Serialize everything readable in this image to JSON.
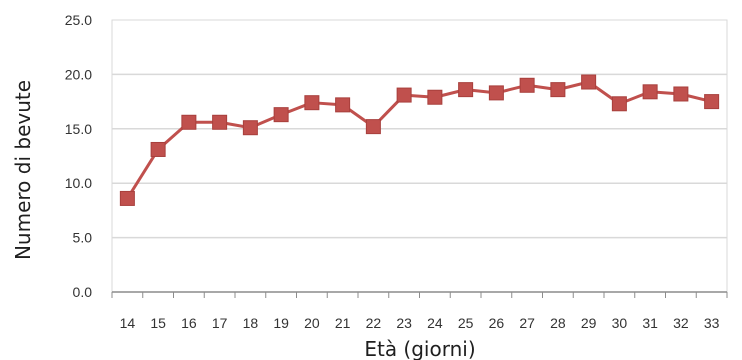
{
  "chart_data": {
    "type": "line",
    "title": "",
    "xlabel": "Età (giorni)",
    "ylabel": "Numero di bevute",
    "categories": [
      "14",
      "15",
      "16",
      "17",
      "18",
      "19",
      "20",
      "21",
      "22",
      "23",
      "24",
      "25",
      "26",
      "27",
      "28",
      "29",
      "30",
      "31",
      "32",
      "33"
    ],
    "series": [
      {
        "name": "",
        "values": [
          8.6,
          13.1,
          15.6,
          15.6,
          15.1,
          16.3,
          17.4,
          17.2,
          15.2,
          18.1,
          17.9,
          18.6,
          18.3,
          19.0,
          18.6,
          19.3,
          17.3,
          18.4,
          18.2,
          17.5
        ]
      }
    ],
    "ylim": [
      0,
      25
    ],
    "yticks": [
      "0.0",
      "5.0",
      "10.0",
      "15.0",
      "20.0",
      "25.0"
    ],
    "grid": true,
    "colors": {
      "series": "#c0504d",
      "grid": "#d9d9d9",
      "axis": "#8c8c8c"
    },
    "marker": "square"
  }
}
